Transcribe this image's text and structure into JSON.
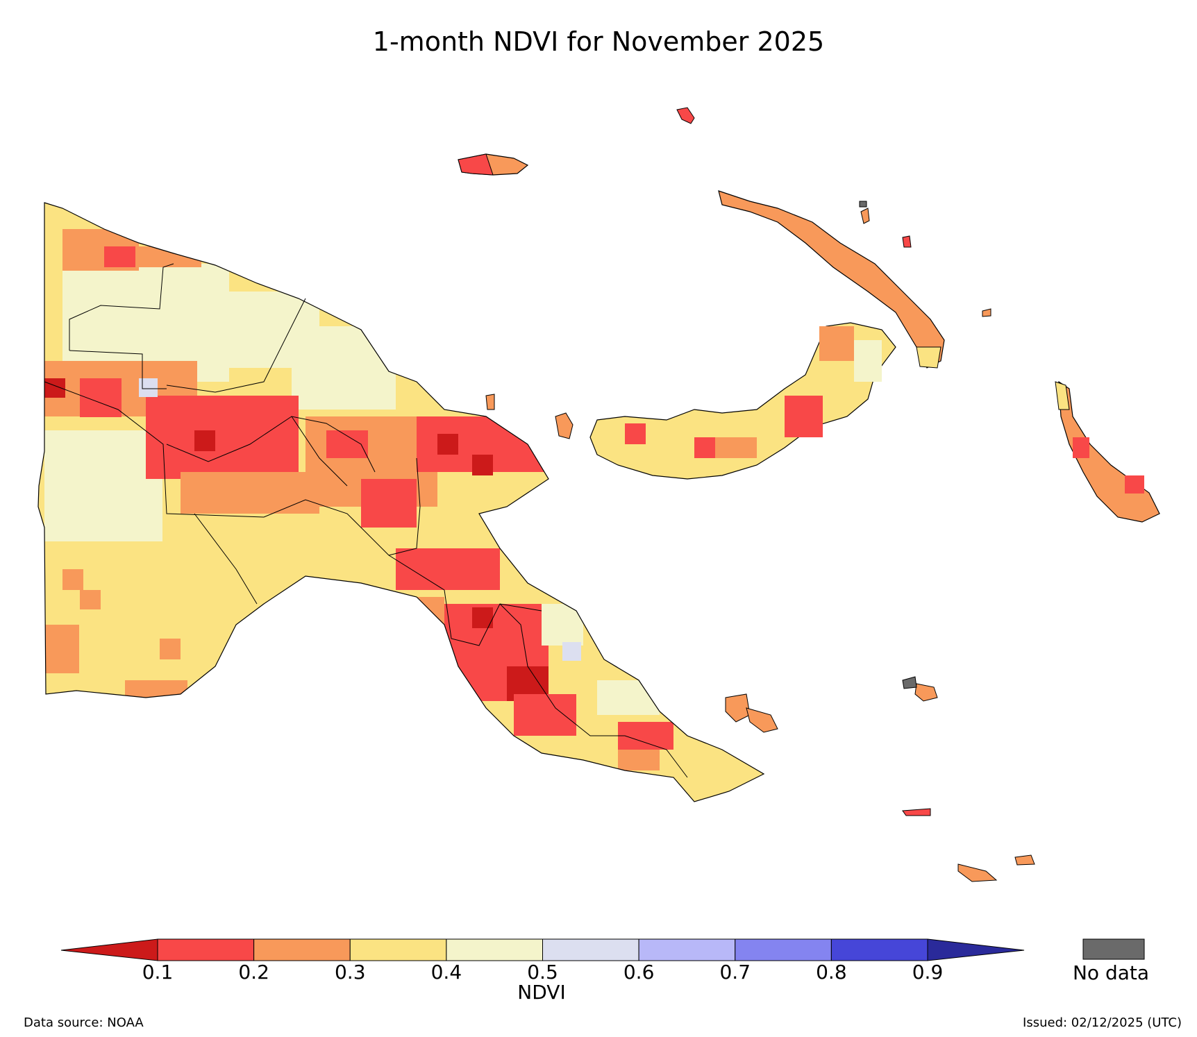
{
  "title": "1-month NDVI for November 2025",
  "colorbar": {
    "label": "NDVI",
    "ticks": [
      "0.1",
      "0.2",
      "0.3",
      "0.4",
      "0.5",
      "0.6",
      "0.7",
      "0.8",
      "0.9"
    ],
    "under_color": "#cc1a1a",
    "over_color": "#2a2a9a",
    "bins": [
      {
        "from": 0.1,
        "to": 0.2,
        "color": "#f84848"
      },
      {
        "from": 0.2,
        "to": 0.3,
        "color": "#f8995a"
      },
      {
        "from": 0.3,
        "to": 0.4,
        "color": "#fbe382"
      },
      {
        "from": 0.4,
        "to": 0.5,
        "color": "#f4f4cb"
      },
      {
        "from": 0.5,
        "to": 0.6,
        "color": "#dcdff0"
      },
      {
        "from": 0.6,
        "to": 0.7,
        "color": "#b8b8f8"
      },
      {
        "from": 0.7,
        "to": 0.8,
        "color": "#8484f0"
      },
      {
        "from": 0.8,
        "to": 0.9,
        "color": "#4646d8"
      }
    ]
  },
  "no_data": {
    "label": "No data",
    "color": "#6a6a6a"
  },
  "footer": {
    "data_source": "Data source: NOAA",
    "issued": "Issued: 02/12/2025 (UTC)"
  }
}
